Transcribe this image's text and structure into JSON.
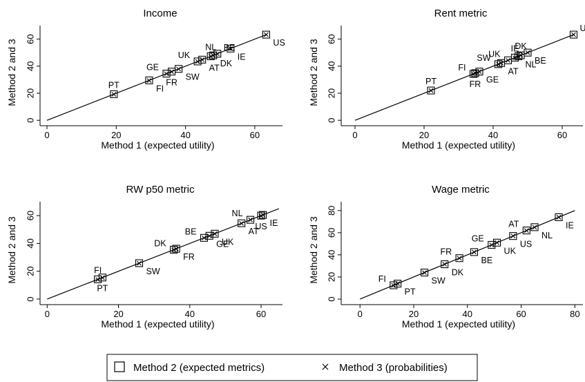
{
  "chart_data": [
    {
      "type": "scatter",
      "title": "Income",
      "xlabel": "Method 1 (expected utility)",
      "ylabel": "Method 2 and 3",
      "xlim": [
        -2,
        68
      ],
      "ylim": [
        -4,
        70
      ],
      "xticks": [
        0,
        20,
        40,
        60
      ],
      "yticks": [
        0,
        20,
        40,
        60
      ],
      "line_range": [
        0,
        63.5
      ],
      "points": [
        {
          "label": "PT",
          "x": 19.3,
          "m2": 19.3,
          "m3": 19.2,
          "pos": "above"
        },
        {
          "label": "FI",
          "x": 29.5,
          "m2": 29.5,
          "m3": 29.4,
          "pos": "below-right"
        },
        {
          "label": "GE",
          "x": 34.5,
          "m2": 34.5,
          "m3": 34.4,
          "pos": "above-left"
        },
        {
          "label": "FR",
          "x": 36.0,
          "m2": 36.0,
          "m3": 35.9,
          "pos": "below"
        },
        {
          "label": "SW",
          "x": 38.0,
          "m2": 38.0,
          "m3": 37.9,
          "pos": "below-right"
        },
        {
          "label": "UK",
          "x": 43.5,
          "m2": 43.5,
          "m3": 43.4,
          "pos": "above-left"
        },
        {
          "label": "AT",
          "x": 44.8,
          "m2": 44.8,
          "m3": 44.8,
          "pos": "below-right"
        },
        {
          "label": "NL",
          "x": 47.3,
          "m2": 47.3,
          "m3": 47.2,
          "pos": "above"
        },
        {
          "label": "DK",
          "x": 48.0,
          "m2": 48.0,
          "m3": 48.0,
          "pos": "below-right"
        },
        {
          "label": "BE",
          "x": 49.2,
          "m2": 49.2,
          "m3": 49.1,
          "pos": "above-right"
        },
        {
          "label": "IE",
          "x": 53.0,
          "m2": 53.0,
          "m3": 53.0,
          "pos": "below-right"
        },
        {
          "label": "US",
          "x": 63.3,
          "m2": 63.3,
          "m3": 63.3,
          "pos": "below-right"
        }
      ]
    },
    {
      "type": "scatter",
      "title": "Rent metric",
      "xlabel": "Method 1 (expected utility)",
      "ylabel": "Method 2 and 3",
      "xlim": [
        -4,
        66
      ],
      "ylim": [
        -4,
        70
      ],
      "xticks": [
        0,
        20,
        40,
        60
      ],
      "yticks": [
        0,
        20,
        40,
        60
      ],
      "line_range": [
        0,
        63.5
      ],
      "points": [
        {
          "label": "PT",
          "x": 22.0,
          "m2": 22.0,
          "m3": 22.0,
          "pos": "above"
        },
        {
          "label": "FI",
          "x": 34.3,
          "m2": 34.3,
          "m3": 34.2,
          "pos": "above-left"
        },
        {
          "label": "FR",
          "x": 34.8,
          "m2": 34.8,
          "m3": 34.7,
          "pos": "below"
        },
        {
          "label": "GE",
          "x": 36.0,
          "m2": 36.0,
          "m3": 36.0,
          "pos": "below-right"
        },
        {
          "label": "SW",
          "x": 41.5,
          "m2": 41.5,
          "m3": 41.4,
          "pos": "above-left"
        },
        {
          "label": "AT",
          "x": 42.3,
          "m2": 42.3,
          "m3": 42.3,
          "pos": "below-right"
        },
        {
          "label": "UK",
          "x": 44.3,
          "m2": 44.3,
          "m3": 44.3,
          "pos": "above-left"
        },
        {
          "label": "IE",
          "x": 46.3,
          "m2": 46.3,
          "m3": 46.2,
          "pos": "above"
        },
        {
          "label": "NL",
          "x": 47.3,
          "m2": 47.3,
          "m3": 47.2,
          "pos": "below-right"
        },
        {
          "label": "DK",
          "x": 48.0,
          "m2": 48.0,
          "m3": 48.0,
          "pos": "above"
        },
        {
          "label": "BE",
          "x": 50.0,
          "m2": 50.0,
          "m3": 50.0,
          "pos": "below-right"
        },
        {
          "label": "US",
          "x": 63.3,
          "m2": 63.3,
          "m3": 63.3,
          "pos": "above-right"
        }
      ]
    },
    {
      "type": "scatter",
      "title": "RW p50 metric",
      "xlabel": "Method 1 (expected utility)",
      "ylabel": "Method 2 and 3",
      "xlim": [
        -2,
        66
      ],
      "ylim": [
        -4,
        70
      ],
      "xticks": [
        0,
        20,
        40,
        60
      ],
      "yticks": [
        0,
        20,
        40,
        60
      ],
      "line_range": [
        0,
        65
      ],
      "points": [
        {
          "label": "FI",
          "x": 14.2,
          "m2": 14.2,
          "m3": 14.0,
          "pos": "above"
        },
        {
          "label": "PT",
          "x": 15.5,
          "m2": 15.5,
          "m3": 15.4,
          "pos": "below"
        },
        {
          "label": "SW",
          "x": 25.8,
          "m2": 25.8,
          "m3": 25.7,
          "pos": "below-right"
        },
        {
          "label": "DK",
          "x": 35.5,
          "m2": 35.5,
          "m3": 35.4,
          "pos": "above-left"
        },
        {
          "label": "FR",
          "x": 36.2,
          "m2": 36.2,
          "m3": 36.1,
          "pos": "below-right"
        },
        {
          "label": "BE",
          "x": 44.0,
          "m2": 44.0,
          "m3": 44.0,
          "pos": "above-left"
        },
        {
          "label": "GE",
          "x": 45.5,
          "m2": 45.5,
          "m3": 45.4,
          "pos": "below-right"
        },
        {
          "label": "UK",
          "x": 47.0,
          "m2": 47.0,
          "m3": 47.0,
          "pos": "below-right"
        },
        {
          "label": "AT",
          "x": 54.5,
          "m2": 54.5,
          "m3": 54.4,
          "pos": "below-right"
        },
        {
          "label": "NL",
          "x": 57.0,
          "m2": 57.0,
          "m3": 57.0,
          "pos": "above-left"
        },
        {
          "label": "US",
          "x": 60.0,
          "m2": 60.0,
          "m3": 59.9,
          "pos": "below"
        },
        {
          "label": "IE",
          "x": 60.5,
          "m2": 60.5,
          "m3": 60.5,
          "pos": "below-right"
        }
      ]
    },
    {
      "type": "scatter",
      "title": "Wage metric",
      "xlabel": "Method 1 (expected utility)",
      "ylabel": "Method 2 and 3",
      "xlim": [
        -7,
        83
      ],
      "ylim": [
        -5,
        88
      ],
      "xticks": [
        0,
        20,
        40,
        60,
        80
      ],
      "yticks": [
        0,
        20,
        40,
        60,
        80
      ],
      "line_range": [
        0,
        80
      ],
      "points": [
        {
          "label": "FI",
          "x": 12.5,
          "m2": 12.5,
          "m3": 12.4,
          "pos": "above-left"
        },
        {
          "label": "PT",
          "x": 14.0,
          "m2": 14.0,
          "m3": 14.0,
          "pos": "below-right"
        },
        {
          "label": "SW",
          "x": 24.0,
          "m2": 24.0,
          "m3": 23.9,
          "pos": "below-right"
        },
        {
          "label": "DK",
          "x": 31.5,
          "m2": 31.5,
          "m3": 31.5,
          "pos": "below-right"
        },
        {
          "label": "FR",
          "x": 37.0,
          "m2": 37.0,
          "m3": 37.0,
          "pos": "above-left"
        },
        {
          "label": "BE",
          "x": 42.5,
          "m2": 42.5,
          "m3": 42.5,
          "pos": "below-right"
        },
        {
          "label": "GE",
          "x": 49.0,
          "m2": 49.0,
          "m3": 48.9,
          "pos": "above-left"
        },
        {
          "label": "UK",
          "x": 51.0,
          "m2": 51.0,
          "m3": 51.0,
          "pos": "below-right"
        },
        {
          "label": "US",
          "x": 57.0,
          "m2": 57.0,
          "m3": 57.0,
          "pos": "below-right"
        },
        {
          "label": "AT",
          "x": 62.0,
          "m2": 62.0,
          "m3": 61.9,
          "pos": "above-left"
        },
        {
          "label": "NL",
          "x": 65.0,
          "m2": 65.0,
          "m3": 64.9,
          "pos": "below-right"
        },
        {
          "label": "IE",
          "x": 74.0,
          "m2": 74.0,
          "m3": 74.0,
          "pos": "below-right"
        }
      ]
    }
  ],
  "legend": {
    "items": [
      {
        "label": "Method 2 (expected metrics)",
        "marker": "hollow-square"
      },
      {
        "label": "Method 3 (probabilities)",
        "marker": "x"
      }
    ]
  }
}
